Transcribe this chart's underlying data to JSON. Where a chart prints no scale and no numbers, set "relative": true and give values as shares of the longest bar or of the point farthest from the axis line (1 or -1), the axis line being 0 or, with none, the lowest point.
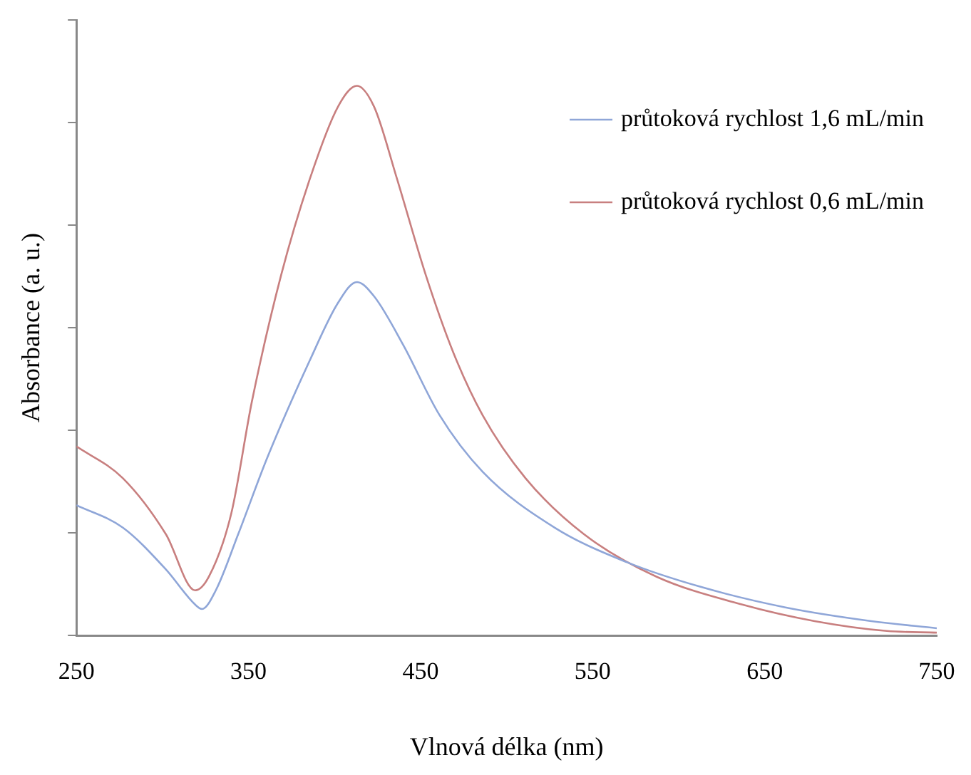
{
  "chart_data": {
    "type": "line",
    "xlabel": "Vlnová délka (nm)",
    "ylabel": "Absorbance (a. u.)",
    "relative": true,
    "xlim": [
      250,
      750
    ],
    "xticks": [
      250,
      350,
      450,
      550,
      650,
      750
    ],
    "grid": false,
    "legend": "top right",
    "marker": "none",
    "line_style": "solid",
    "series": [
      {
        "name": "průtoková rychlost 1,6 mL/min",
        "color": "#8fa6d8",
        "x": [
          250,
          277,
          302,
          319,
          323,
          331,
          344,
          361,
          386,
          402,
          413,
          423,
          440,
          461,
          486,
          528,
          570,
          612,
          662,
          712,
          750
        ],
        "values": [
          0.237,
          0.196,
          0.12,
          0.056,
          0.048,
          0.082,
          0.184,
          0.324,
          0.503,
          0.605,
          0.643,
          0.617,
          0.528,
          0.401,
          0.298,
          0.196,
          0.133,
          0.089,
          0.051,
          0.026,
          0.013
        ]
      },
      {
        "name": "průtoková rychlost 0,6 mL/min",
        "color": "#c87f7f",
        "x": [
          250,
          277,
          302,
          319,
          327,
          340,
          352,
          369,
          386,
          402,
          413,
          423,
          436,
          453,
          469,
          486,
          511,
          545,
          587,
          637,
          679,
          721,
          750
        ],
        "values": [
          0.344,
          0.286,
          0.184,
          0.082,
          0.107,
          0.222,
          0.426,
          0.656,
          0.834,
          0.962,
          1,
          0.962,
          0.834,
          0.656,
          0.515,
          0.401,
          0.286,
          0.184,
          0.107,
          0.056,
          0.026,
          0.008,
          0.005
        ]
      }
    ]
  }
}
